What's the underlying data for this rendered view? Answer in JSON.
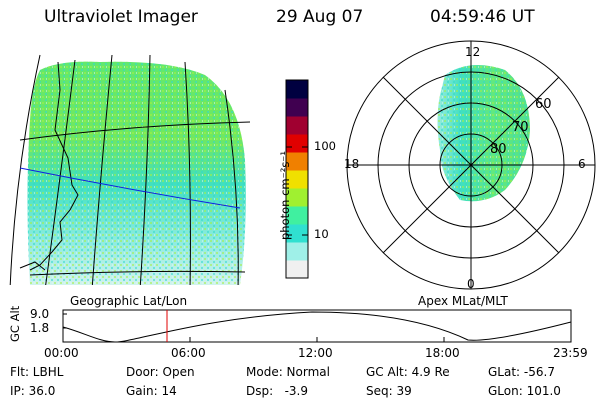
{
  "header": {
    "instrument": "Ultraviolet Imager",
    "date": "29 Aug 07",
    "time": "04:59:46 UT"
  },
  "colorbar": {
    "unit_label": "photon cm⁻²s⁻¹",
    "ticks": [
      "100",
      "10"
    ],
    "colors": [
      "#f0f0f0",
      "#9ff0e8",
      "#30e0d0",
      "#40f0a0",
      "#a0f030",
      "#f0e000",
      "#f08000",
      "#e00000",
      "#a00030",
      "#400050",
      "#000040"
    ]
  },
  "left_panel": {
    "caption": "Geographic Lat/Lon"
  },
  "right_panel": {
    "caption": "Apex MLat/MLT",
    "mlt_labels": {
      "top": "12",
      "left": "18",
      "right": "6",
      "bottom": "0"
    },
    "lat_labels": [
      "60",
      "70",
      "80"
    ]
  },
  "altitude_plot": {
    "ylabel": "GC Alt",
    "yticks": [
      "9.0",
      "1.8"
    ],
    "xticks": [
      "00:00",
      "06:00",
      "12:00",
      "18:00",
      "23:59"
    ],
    "marker_time": "04:59:46"
  },
  "info": {
    "flt": "Flt: LBHL",
    "ip": "IP: 36.0",
    "door": "Door: Open",
    "gain": "Gain: 14",
    "mode": "Mode: Normal",
    "dsp": "Dsp:   -3.9",
    "gcalt": "GC Alt: 4.9 Re",
    "seq": "Seq: 39",
    "glat": "GLat: -56.7",
    "glon": "GLon: 101.0"
  }
}
